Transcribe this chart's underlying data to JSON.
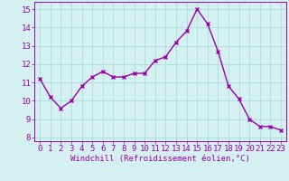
{
  "x": [
    0,
    1,
    2,
    3,
    4,
    5,
    6,
    7,
    8,
    9,
    10,
    11,
    12,
    13,
    14,
    15,
    16,
    17,
    18,
    19,
    20,
    21,
    22,
    23
  ],
  "y": [
    11.2,
    10.2,
    9.6,
    10.0,
    10.8,
    11.3,
    11.6,
    11.3,
    11.3,
    11.5,
    11.5,
    12.2,
    12.4,
    13.2,
    13.8,
    15.0,
    14.2,
    12.7,
    10.8,
    10.1,
    9.0,
    8.6,
    8.6,
    8.4
  ],
  "line_color": "#9900aa",
  "marker": "x",
  "marker_size": 3,
  "bg_color": "#d4f0f0",
  "grid_color": "#a0d8d8",
  "xlabel": "Windchill (Refroidissement éolien,°C)",
  "xlabel_color": "#9900aa",
  "xlabel_fontsize": 6.5,
  "tick_color": "#9900aa",
  "tick_fontsize": 6.5,
  "ylim": [
    7.8,
    15.4
  ],
  "xlim": [
    -0.5,
    23.5
  ],
  "yticks": [
    8,
    9,
    10,
    11,
    12,
    13,
    14,
    15
  ],
  "xticks": [
    0,
    1,
    2,
    3,
    4,
    5,
    6,
    7,
    8,
    9,
    10,
    11,
    12,
    13,
    14,
    15,
    16,
    17,
    18,
    19,
    20,
    21,
    22,
    23
  ],
  "line_width": 1.0
}
